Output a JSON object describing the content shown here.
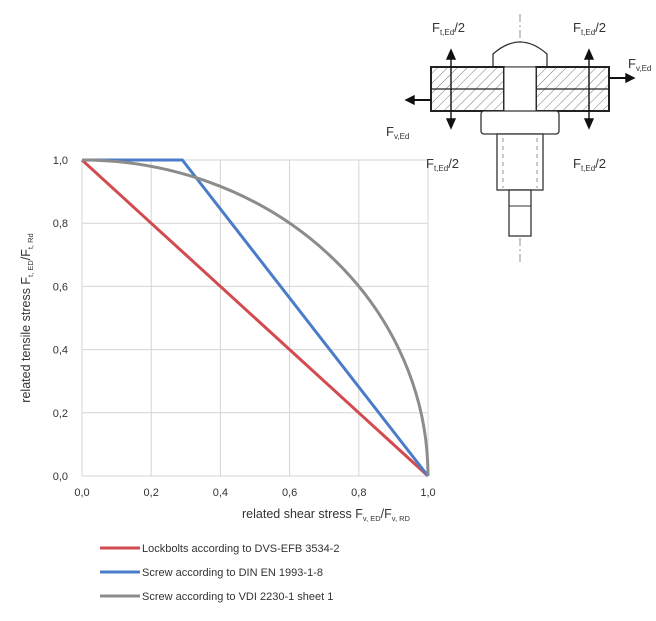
{
  "chart_data": {
    "type": "line",
    "xlabel": {
      "main": "related shear stress F",
      "sub1": "v, ED",
      "slash": "/F",
      "sub2": "v, RD"
    },
    "ylabel": {
      "main": "related tensile stress F",
      "sub1": "t, ED",
      "slash": "/F",
      "sub2": "t, Rd"
    },
    "xlim": [
      0,
      1
    ],
    "ylim": [
      0,
      1
    ],
    "xticks": [
      "0,0",
      "0,2",
      "0,4",
      "0,6",
      "0,8",
      "1,0"
    ],
    "yticks": [
      "0,0",
      "0,2",
      "0,4",
      "0,6",
      "0,8",
      "1,0"
    ],
    "grid": true,
    "legend_position": "bottom",
    "series": [
      {
        "name": "Lockbolts according to DVS-EFB 3534-2",
        "color": "#d24b50",
        "x": [
          0,
          1
        ],
        "y": [
          1,
          0
        ]
      },
      {
        "name": "Screw according to DIN EN 1993-1-8",
        "color": "#4a7cc7",
        "x": [
          0,
          0.29,
          1
        ],
        "y": [
          1,
          1,
          0
        ]
      },
      {
        "name": "Screw according to VDI 2230-1 sheet 1",
        "color": "#8c8c8c",
        "curve": "quarter-circle",
        "x": [
          0,
          0.1,
          0.2,
          0.3,
          0.4,
          0.5,
          0.6,
          0.7,
          0.8,
          0.9,
          0.95,
          1
        ],
        "y": [
          1,
          0.995,
          0.98,
          0.954,
          0.917,
          0.866,
          0.8,
          0.714,
          0.6,
          0.436,
          0.312,
          0
        ]
      }
    ]
  },
  "diagram": {
    "labels": {
      "top_left": {
        "main": "F",
        "sub": "t,Ed",
        "tail": "/2"
      },
      "top_right": {
        "main": "F",
        "sub": "t,Ed",
        "tail": "/2"
      },
      "bottom_left": {
        "main": "F",
        "sub": "t,Ed",
        "tail": "/2"
      },
      "bottom_right": {
        "main": "F",
        "sub": "t,Ed",
        "tail": "/2"
      },
      "shear_right": {
        "main": "F",
        "sub": "v,Ed"
      },
      "shear_left": {
        "main": "F",
        "sub": "v,Ed"
      }
    }
  }
}
